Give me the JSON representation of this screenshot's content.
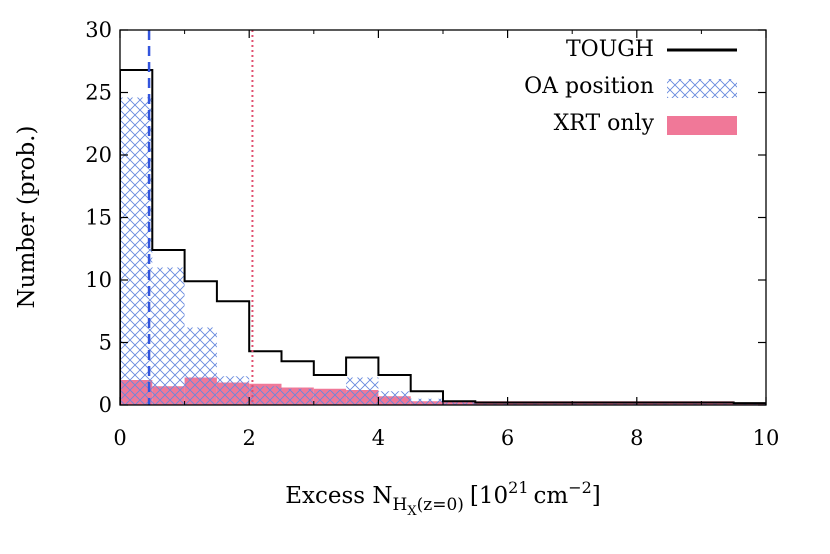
{
  "chart_data": {
    "type": "histogram",
    "x_label": {
      "prefix": "Excess N",
      "sub_main": "H",
      "sub_sub": "X",
      "sub_tail": "(z=0)",
      "unit_open": "[10",
      "unit_exp1": "21",
      "unit_mid": "cm",
      "unit_exp2": "−2",
      "unit_close": "]"
    },
    "y_label": "Number (prob.)",
    "xlim": [
      0,
      10
    ],
    "ylim": [
      0,
      30
    ],
    "x_ticks": [
      0,
      2,
      4,
      6,
      8,
      10
    ],
    "y_ticks": [
      0,
      5,
      10,
      15,
      20,
      25,
      30
    ],
    "bin_edges": [
      0,
      0.5,
      1,
      1.5,
      2,
      2.5,
      3,
      3.5,
      4,
      4.5,
      5,
      5.5,
      6,
      6.5,
      7,
      7.5,
      8,
      8.5,
      9,
      9.5,
      10
    ],
    "series": [
      {
        "name": "TOUGH",
        "style": "step-line",
        "color": "#000000",
        "values": [
          26.8,
          12.4,
          9.9,
          8.3,
          4.3,
          3.5,
          2.4,
          3.8,
          2.4,
          1.1,
          0.3,
          0.2,
          0.2,
          0.2,
          0.2,
          0.2,
          0.2,
          0.2,
          0.2,
          0.15
        ]
      },
      {
        "name": "OA position",
        "style": "cross-hatch",
        "color": "#6688dd",
        "values": [
          24.6,
          11.0,
          6.2,
          2.3,
          1.5,
          1.3,
          1.2,
          2.2,
          1.1,
          0.5,
          0.2,
          0.1,
          0.1,
          0.1,
          0.1,
          0.1,
          0.1,
          0.1,
          0.1,
          0.1
        ]
      },
      {
        "name": "XRT only",
        "style": "filled",
        "color": "#f07898",
        "values": [
          2.0,
          1.5,
          2.2,
          1.8,
          1.7,
          1.4,
          1.3,
          1.2,
          0.7,
          0.3,
          0.3,
          0.3,
          0.3,
          0.3,
          0.3,
          0.3,
          0.3,
          0.3,
          0.3,
          0.2
        ]
      }
    ],
    "vertical_lines": [
      {
        "x": 0.45,
        "style": "dashed",
        "color": "#3355dd"
      },
      {
        "x": 2.05,
        "style": "dotted",
        "color": "#e05070"
      }
    ],
    "legend_position": "top-right"
  }
}
